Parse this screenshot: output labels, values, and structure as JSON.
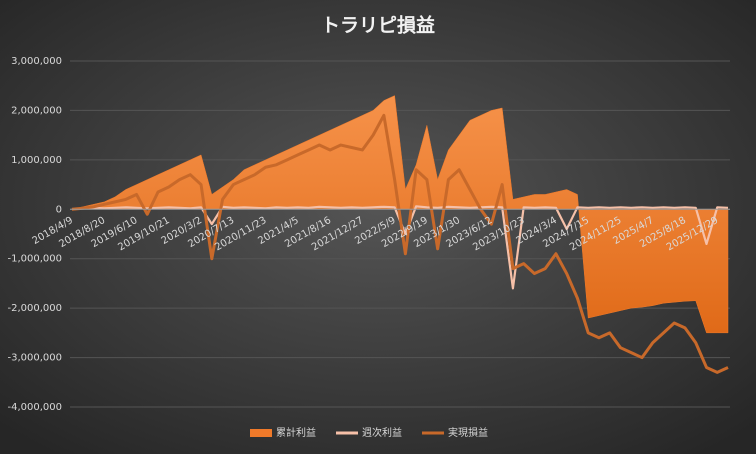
{
  "chart_data": {
    "type": "line",
    "title": "トラリピ損益",
    "categories": [
      "2018/4/9",
      null,
      null,
      "2018/8/20",
      null,
      null,
      "2019/6/10",
      null,
      null,
      "2019/10/21",
      null,
      null,
      "2020/3/2",
      null,
      null,
      "2020/7/13",
      null,
      null,
      "2020/11/23",
      null,
      null,
      "2021/4/5",
      null,
      null,
      "2021/8/16",
      null,
      null,
      "2021/12/27",
      null,
      null,
      "2022/5/9",
      null,
      null,
      "2022/9/19",
      null,
      null,
      "2023/1/30",
      null,
      null,
      "2023/6/12",
      null,
      null,
      "2023/10/23",
      null,
      null,
      "2024/3/4",
      null,
      null,
      "2024/7/15",
      null,
      null,
      "2024/11/25",
      null,
      null,
      "2025/4/7",
      null,
      null,
      "2025/8/18",
      null,
      null,
      "2025/12/29",
      null
    ],
    "series": [
      {
        "name": "累計利益",
        "kind": "area",
        "color": "#f07a2a",
        "values": [
          0,
          50000,
          100000,
          150000,
          250000,
          400000,
          500000,
          600000,
          700000,
          800000,
          900000,
          1000000,
          1100000,
          300000,
          450000,
          600000,
          800000,
          900000,
          1000000,
          1100000,
          1200000,
          1300000,
          1400000,
          1500000,
          1600000,
          1700000,
          1800000,
          1900000,
          2000000,
          2200000,
          2300000,
          400000,
          900000,
          1700000,
          600000,
          1200000,
          1500000,
          1800000,
          1900000,
          2000000,
          2050000,
          200000,
          250000,
          300000,
          300000,
          350000,
          400000,
          300000,
          -2200000,
          -2150000,
          -2100000,
          -2050000,
          -2000000,
          -1980000,
          -1950000,
          -1900000,
          -1880000,
          -1860000,
          -1850000,
          -2500000,
          -2500000,
          -2500000
        ]
      },
      {
        "name": "週次利益",
        "kind": "line",
        "color": "#f6c0a8",
        "values": [
          0,
          20000,
          30000,
          20000,
          30000,
          40000,
          30000,
          20000,
          30000,
          40000,
          30000,
          20000,
          40000,
          -300000,
          50000,
          30000,
          40000,
          30000,
          20000,
          40000,
          30000,
          40000,
          30000,
          50000,
          40000,
          30000,
          40000,
          30000,
          40000,
          50000,
          40000,
          -500000,
          60000,
          40000,
          30000,
          50000,
          40000,
          30000,
          40000,
          50000,
          40000,
          -1600000,
          40000,
          30000,
          40000,
          30000,
          -400000,
          40000,
          30000,
          40000,
          30000,
          40000,
          30000,
          40000,
          30000,
          40000,
          30000,
          40000,
          30000,
          -700000,
          40000,
          30000
        ]
      },
      {
        "name": "実現損益",
        "kind": "line",
        "color": "#c8692a",
        "values": [
          0,
          20000,
          50000,
          100000,
          150000,
          200000,
          300000,
          -100000,
          350000,
          450000,
          600000,
          700000,
          500000,
          -1000000,
          200000,
          500000,
          600000,
          700000,
          850000,
          900000,
          1000000,
          1100000,
          1200000,
          1300000,
          1200000,
          1300000,
          1250000,
          1200000,
          1500000,
          1900000,
          600000,
          -900000,
          800000,
          600000,
          -800000,
          600000,
          800000,
          400000,
          0,
          -300000,
          500000,
          -1200000,
          -1100000,
          -1300000,
          -1200000,
          -900000,
          -1300000,
          -1800000,
          -2500000,
          -2600000,
          -2500000,
          -2800000,
          -2900000,
          -3000000,
          -2700000,
          -2500000,
          -2300000,
          -2400000,
          -2700000,
          -3200000,
          -3300000,
          -3200000
        ]
      }
    ],
    "ylim": [
      -4000000,
      3000000
    ],
    "yticks": [
      {
        "value": -4000000,
        "label": "-4,000,000"
      },
      {
        "value": -3000000,
        "label": "-3,000,000"
      },
      {
        "value": -2000000,
        "label": "-2,000,000"
      },
      {
        "value": -1000000,
        "label": "-1,000,000"
      },
      0,
      {
        "value": 1000000,
        "label": "1,000,000"
      },
      {
        "value": 2000000,
        "label": "2,000,000"
      },
      {
        "value": 3000000,
        "label": "3,000,000"
      }
    ],
    "grid": true,
    "legend": "bottom"
  }
}
